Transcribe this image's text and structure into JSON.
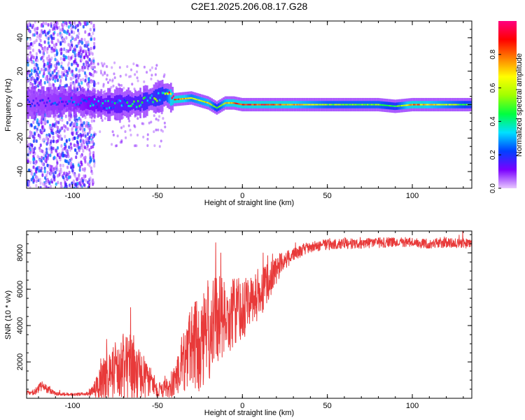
{
  "title": "C2E1.2025.206.08.17.G28",
  "chart_data": [
    {
      "type": "heatmap",
      "xlabel": "Height of straight line (km)",
      "ylabel": "Frequency (Hz)",
      "xlim": [
        -127,
        135
      ],
      "ylim": [
        -50,
        50
      ],
      "x_ticks": [
        -100,
        -50,
        0,
        50,
        100
      ],
      "y_ticks": [
        -40,
        -20,
        0,
        20,
        40
      ],
      "colorbar": {
        "label": "Normalized spectral amplitude",
        "range": [
          0,
          1
        ],
        "ticks": [
          0.0,
          0.2,
          0.4,
          0.6,
          0.8
        ],
        "tick_labels": [
          "0.0",
          "0.2",
          "0.4",
          "0.6",
          "0.8"
        ],
        "colors": [
          "#e8c8ff",
          "#7a00ff",
          "#0040ff",
          "#00e0ff",
          "#00ff40",
          "#a0ff00",
          "#ffff00",
          "#ff8000",
          "#ff0000",
          "#ff0080"
        ]
      },
      "ridge": {
        "x": [
          -127,
          -100,
          -80,
          -60,
          -45,
          -40,
          -30,
          -20,
          -15,
          -10,
          -5,
          0,
          20,
          50,
          80,
          90,
          100,
          135
        ],
        "freq": [
          1,
          2,
          0,
          1,
          6,
          3,
          4,
          1,
          -2,
          1,
          1,
          0,
          0,
          0,
          0,
          -1,
          0,
          0
        ],
        "amplitude": [
          0.15,
          0.2,
          0.3,
          0.35,
          0.45,
          0.95,
          0.6,
          0.7,
          0.45,
          0.7,
          0.85,
          0.9,
          0.85,
          0.55,
          0.55,
          0.45,
          0.85,
          0.45
        ]
      }
    },
    {
      "type": "line",
      "xlabel": "Height of straight line (km)",
      "ylabel": "SNR (10 * v/v)",
      "xlim": [
        -127,
        135
      ],
      "ylim": [
        0,
        9200
      ],
      "x_ticks": [
        -100,
        -50,
        0,
        50,
        100
      ],
      "y_ticks": [
        2000,
        4000,
        6000,
        8000
      ],
      "series": [
        {
          "color": "#e83a3a",
          "x": [
            -127,
            -122,
            -118,
            -110,
            -100,
            -92,
            -88,
            -84,
            -80,
            -75,
            -70,
            -65,
            -60,
            -55,
            -50,
            -45,
            -40,
            -36,
            -32,
            -28,
            -24,
            -20,
            -16,
            -12,
            -8,
            -4,
            0,
            5,
            10,
            15,
            20,
            25,
            30,
            35,
            40,
            50,
            60,
            70,
            80,
            90,
            100,
            110,
            120,
            135
          ],
          "y": [
            300,
            350,
            700,
            250,
            200,
            250,
            400,
            700,
            1100,
            1500,
            1800,
            1800,
            1300,
            1000,
            500,
            500,
            900,
            1600,
            2300,
            2900,
            3300,
            3800,
            4200,
            4300,
            4600,
            4700,
            4900,
            5200,
            5600,
            6400,
            7100,
            7600,
            7900,
            8150,
            8300,
            8450,
            8500,
            8500,
            8550,
            8600,
            8550,
            8500,
            8550,
            8500
          ],
          "spread": [
            100,
            200,
            300,
            100,
            80,
            100,
            300,
            1000,
            1600,
            1700,
            1900,
            1900,
            1400,
            900,
            400,
            500,
            1000,
            1700,
            2300,
            2500,
            2900,
            2900,
            2600,
            2400,
            2100,
            1900,
            1700,
            1500,
            1300,
            1100,
            800,
            500,
            400,
            350,
            300,
            300,
            280,
            280,
            280,
            280,
            280,
            260,
            260,
            260
          ]
        }
      ]
    }
  ]
}
